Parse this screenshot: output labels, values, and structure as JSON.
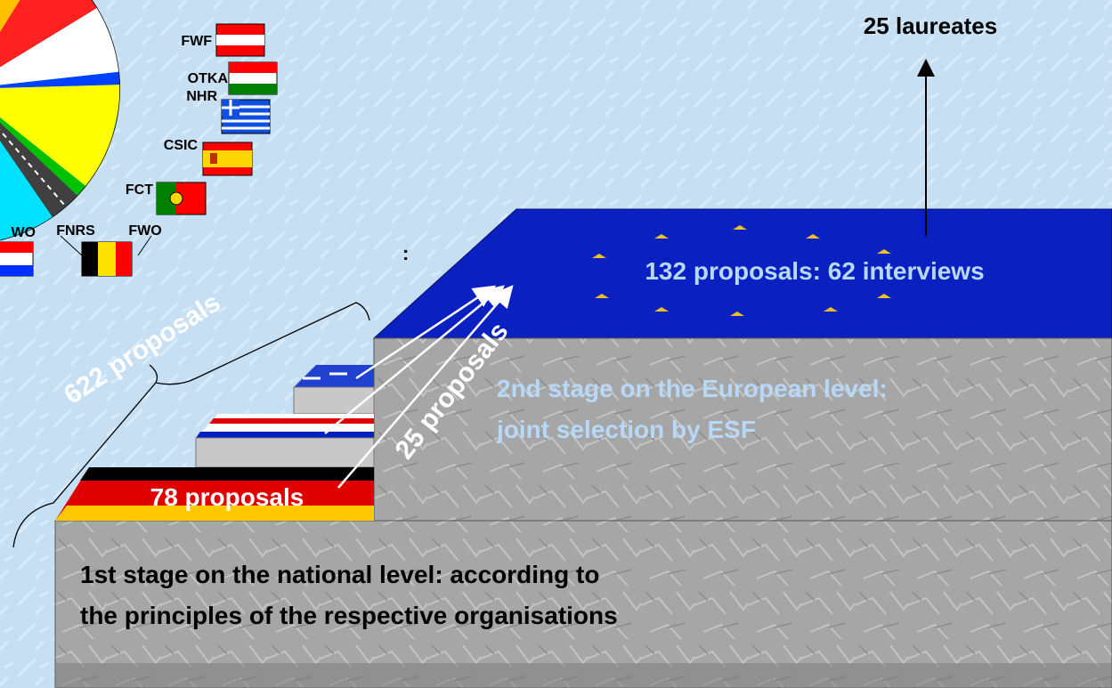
{
  "top": {
    "result": "25 laureates"
  },
  "organisations": {
    "fwf": "FWF",
    "otka": "OTKA",
    "nhr": "NHR",
    "csic": "CSIC",
    "fct": "FCT",
    "nwo": "WO",
    "fnrs": "FNRS",
    "fwo": "FWO"
  },
  "colon": ":",
  "european": {
    "proposals": "132 proposals: 62 interviews",
    "line1": "2nd stage on the European level:",
    "line2": "joint selection by ESF"
  },
  "flows": {
    "total": "622 proposals",
    "forwarded": "25 proposals",
    "german": "78 proposals"
  },
  "national": {
    "line1": "1st stage on the national level: according to",
    "line2": "the principles of the respective organisations"
  }
}
